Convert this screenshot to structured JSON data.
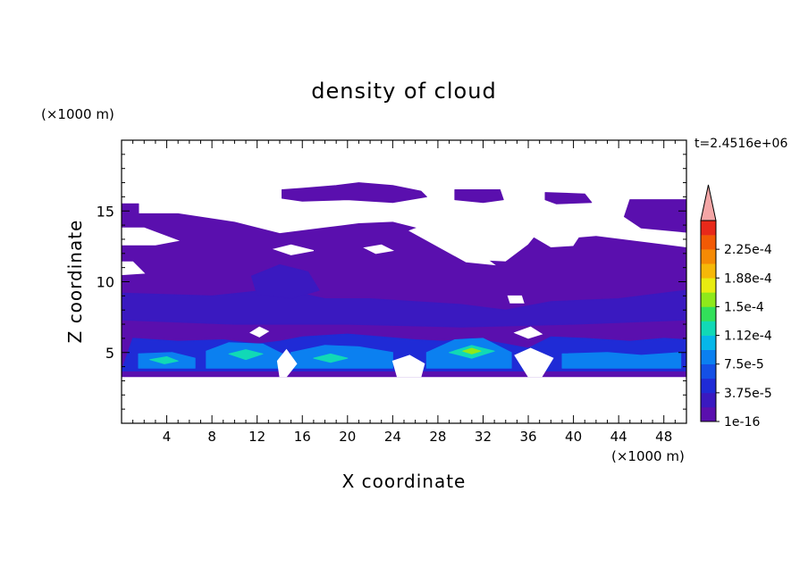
{
  "chart_data": {
    "type": "heatmap",
    "title": "density of cloud",
    "xlabel": "X coordinate",
    "ylabel": "Z coordinate",
    "x_unit": "(×1000 m)",
    "y_unit": "(×1000 m)",
    "annotation": "t=2.4516e+06",
    "xlim": [
      0,
      50
    ],
    "ylim": [
      0,
      20
    ],
    "x_ticks": [
      4,
      8,
      12,
      16,
      20,
      24,
      28,
      32,
      36,
      40,
      44,
      48
    ],
    "y_ticks": [
      5,
      10,
      15
    ],
    "colorbar": {
      "labels": [
        "1e-16",
        "3.75e-5",
        "7.5e-5",
        "1.12e-4",
        "1.5e-4",
        "1.88e-4",
        "2.25e-4"
      ],
      "colors": [
        "#5a0fae",
        "#3a19c0",
        "#1f2bd6",
        "#1450e6",
        "#0b80f0",
        "#06b7e9",
        "#11d9b6",
        "#32e05a",
        "#8fe91a",
        "#e8ec10",
        "#f6b808",
        "#f58a05",
        "#f25a05",
        "#e8291a"
      ],
      "overflow_color": "#f4a6a6"
    },
    "colors": {
      "base": "#5a0fae",
      "dark_band": "#3a19c0",
      "mid": "#1f2bd6",
      "bright": "#0b80f0",
      "core": "#11d9b6",
      "peak": "#8fe91a"
    },
    "regions": [
      {
        "level": "base",
        "polygon": [
          [
            0,
            15.5
          ],
          [
            1.5,
            15.5
          ],
          [
            1.5,
            14.8
          ],
          [
            5,
            14.8
          ],
          [
            10,
            14.2
          ],
          [
            14,
            13.4
          ],
          [
            18,
            13.8
          ],
          [
            21,
            14.1
          ],
          [
            24,
            14.2
          ],
          [
            27,
            13.6
          ],
          [
            28.5,
            12.8
          ],
          [
            30,
            12.4
          ],
          [
            31.5,
            11.5
          ],
          [
            34,
            11.4
          ],
          [
            36,
            12.6
          ],
          [
            36.5,
            13.1
          ],
          [
            38,
            12.4
          ],
          [
            40,
            12.5
          ],
          [
            40.5,
            13.1
          ],
          [
            42,
            13.2
          ],
          [
            45,
            12.9
          ],
          [
            48,
            12.6
          ],
          [
            50,
            12.4
          ],
          [
            50,
            3.3
          ],
          [
            0,
            3.3
          ]
        ]
      },
      {
        "level": "base",
        "polygon": [
          [
            14.2,
            16.5
          ],
          [
            16,
            16.6
          ],
          [
            19,
            16.8
          ],
          [
            21,
            17.0
          ],
          [
            24,
            16.8
          ],
          [
            26.5,
            16.4
          ],
          [
            27,
            16.0
          ],
          [
            24,
            15.6
          ],
          [
            20,
            15.8
          ],
          [
            16,
            15.7
          ],
          [
            14.2,
            15.9
          ]
        ]
      },
      {
        "level": "base",
        "polygon": [
          [
            29.5,
            16.5
          ],
          [
            33.5,
            16.5
          ],
          [
            33.8,
            15.8
          ],
          [
            32,
            15.6
          ],
          [
            29.5,
            15.8
          ]
        ]
      },
      {
        "level": "base",
        "polygon": [
          [
            37.5,
            16.3
          ],
          [
            41,
            16.2
          ],
          [
            41.6,
            15.6
          ],
          [
            38.5,
            15.5
          ],
          [
            37.5,
            15.8
          ]
        ]
      },
      {
        "level": "base",
        "polygon": [
          [
            45,
            15.8
          ],
          [
            50,
            15.8
          ],
          [
            50,
            13.5
          ],
          [
            46,
            13.8
          ],
          [
            44.5,
            14.6
          ]
        ]
      },
      {
        "level": "dark_band",
        "polygon": [
          [
            0,
            9.2
          ],
          [
            8,
            9.0
          ],
          [
            14,
            9.5
          ],
          [
            18,
            8.8
          ],
          [
            22,
            8.8
          ],
          [
            26,
            8.6
          ],
          [
            30,
            8.4
          ],
          [
            34,
            8.0
          ],
          [
            38,
            8.6
          ],
          [
            44,
            8.8
          ],
          [
            50,
            9.4
          ],
          [
            50,
            7.3
          ],
          [
            40,
            7.0
          ],
          [
            30,
            6.8
          ],
          [
            20,
            7.0
          ],
          [
            10,
            7.0
          ],
          [
            0,
            7.3
          ]
        ]
      },
      {
        "level": "dark_band",
        "polygon": [
          [
            11.5,
            10.4
          ],
          [
            14,
            11.2
          ],
          [
            16.5,
            10.7
          ],
          [
            17.5,
            9.4
          ],
          [
            15,
            8.8
          ],
          [
            12,
            9.1
          ]
        ]
      },
      {
        "level": "mid",
        "polygon": [
          [
            1,
            6.0
          ],
          [
            5,
            5.8
          ],
          [
            9,
            5.9
          ],
          [
            12,
            5.6
          ],
          [
            14,
            5.8
          ],
          [
            16,
            6.1
          ],
          [
            20,
            6.3
          ],
          [
            23,
            6.1
          ],
          [
            26,
            5.9
          ],
          [
            28.5,
            5.8
          ],
          [
            31,
            6.0
          ],
          [
            34,
            5.6
          ],
          [
            36,
            5.3
          ],
          [
            38,
            6.1
          ],
          [
            41,
            6.0
          ],
          [
            45,
            5.8
          ],
          [
            48,
            6.0
          ],
          [
            50,
            5.9
          ],
          [
            50,
            3.7
          ],
          [
            0,
            3.7
          ]
        ]
      },
      {
        "level": "bright",
        "polygon": [
          [
            1.5,
            4.9
          ],
          [
            4.5,
            5.0
          ],
          [
            6.5,
            4.6
          ],
          [
            6.5,
            3.9
          ],
          [
            1.5,
            3.9
          ]
        ]
      },
      {
        "level": "bright",
        "polygon": [
          [
            7.5,
            5.1
          ],
          [
            9.5,
            5.7
          ],
          [
            12.5,
            5.6
          ],
          [
            14.5,
            4.8
          ],
          [
            14.5,
            3.9
          ],
          [
            7.5,
            3.9
          ]
        ]
      },
      {
        "level": "bright",
        "polygon": [
          [
            15,
            5.0
          ],
          [
            18,
            5.5
          ],
          [
            21,
            5.4
          ],
          [
            24,
            5.0
          ],
          [
            24,
            3.9
          ],
          [
            15,
            3.9
          ]
        ]
      },
      {
        "level": "bright",
        "polygon": [
          [
            27,
            5.0
          ],
          [
            29.5,
            5.9
          ],
          [
            32,
            6.0
          ],
          [
            34.5,
            5.0
          ],
          [
            34.5,
            3.9
          ],
          [
            27,
            3.9
          ]
        ]
      },
      {
        "level": "bright",
        "polygon": [
          [
            39,
            4.9
          ],
          [
            43,
            5.0
          ],
          [
            46,
            4.8
          ],
          [
            49.5,
            5.0
          ],
          [
            49.5,
            3.9
          ],
          [
            39,
            3.9
          ]
        ]
      },
      {
        "level": "core",
        "polygon": [
          [
            9.5,
            4.9
          ],
          [
            11,
            5.2
          ],
          [
            12.5,
            4.9
          ],
          [
            11,
            4.5
          ]
        ]
      },
      {
        "level": "core",
        "polygon": [
          [
            29,
            5.0
          ],
          [
            31,
            5.5
          ],
          [
            33,
            5.1
          ],
          [
            31,
            4.6
          ]
        ]
      },
      {
        "level": "core",
        "polygon": [
          [
            2.5,
            4.5
          ],
          [
            4,
            4.7
          ],
          [
            5,
            4.4
          ],
          [
            3.8,
            4.2
          ]
        ]
      },
      {
        "level": "core",
        "polygon": [
          [
            17,
            4.6
          ],
          [
            18.5,
            4.9
          ],
          [
            20,
            4.6
          ],
          [
            18.5,
            4.3
          ]
        ]
      },
      {
        "level": "peak",
        "polygon": [
          [
            30.2,
            5.1
          ],
          [
            31,
            5.3
          ],
          [
            31.8,
            5.1
          ],
          [
            31,
            4.9
          ]
        ]
      }
    ],
    "clear_gaps": [
      {
        "polygon": [
          [
            0,
            13.8
          ],
          [
            2,
            13.8
          ],
          [
            5,
            12.9
          ],
          [
            3,
            12.6
          ],
          [
            0,
            12.6
          ]
        ]
      },
      {
        "polygon": [
          [
            0,
            11.4
          ],
          [
            1,
            11.4
          ],
          [
            2,
            10.6
          ],
          [
            0,
            10.5
          ]
        ]
      },
      {
        "polygon": [
          [
            13.5,
            12.3
          ],
          [
            15,
            12.6
          ],
          [
            17,
            12.2
          ],
          [
            15,
            11.9
          ]
        ]
      },
      {
        "polygon": [
          [
            21.5,
            12.4
          ],
          [
            23,
            12.6
          ],
          [
            24,
            12.2
          ],
          [
            22.5,
            12.0
          ]
        ]
      },
      {
        "polygon": [
          [
            25.5,
            13.6
          ],
          [
            27.5,
            14.2
          ],
          [
            32,
            11.8
          ],
          [
            33,
            11.2
          ],
          [
            30.5,
            11.4
          ]
        ]
      },
      {
        "polygon": [
          [
            34.2,
            9.0
          ],
          [
            35.4,
            9.0
          ],
          [
            35.6,
            8.5
          ],
          [
            34.4,
            8.5
          ]
        ]
      },
      {
        "polygon": [
          [
            13.8,
            4.4
          ],
          [
            14.6,
            5.2
          ],
          [
            15.5,
            4.2
          ],
          [
            14.6,
            3.3
          ],
          [
            14.0,
            3.3
          ]
        ]
      },
      {
        "polygon": [
          [
            24.0,
            4.4
          ],
          [
            25.5,
            4.8
          ],
          [
            26.8,
            4.2
          ],
          [
            26.5,
            3.3
          ],
          [
            24.4,
            3.3
          ]
        ]
      },
      {
        "polygon": [
          [
            34.8,
            4.8
          ],
          [
            36.2,
            5.3
          ],
          [
            38.2,
            4.6
          ],
          [
            37.2,
            3.3
          ],
          [
            36.0,
            3.3
          ]
        ]
      },
      {
        "polygon": [
          [
            11.4,
            6.4
          ],
          [
            12.2,
            6.8
          ],
          [
            13.0,
            6.5
          ],
          [
            12.2,
            6.1
          ]
        ]
      },
      {
        "polygon": [
          [
            34.8,
            6.4
          ],
          [
            36.2,
            6.8
          ],
          [
            37.2,
            6.3
          ],
          [
            36.0,
            6.0
          ]
        ]
      }
    ]
  }
}
